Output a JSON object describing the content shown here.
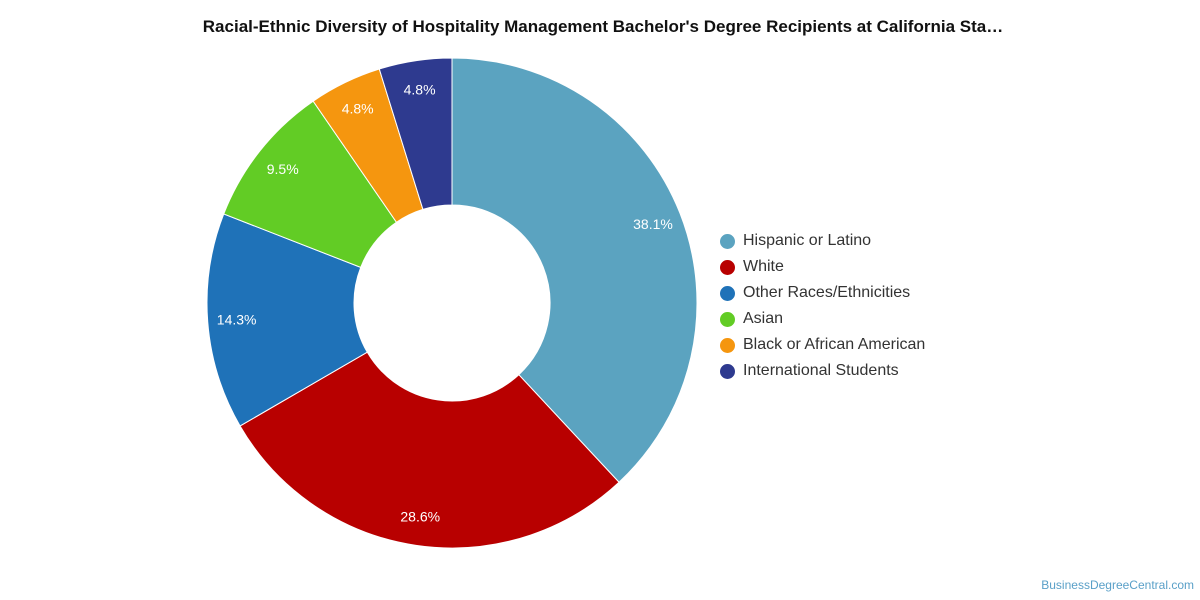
{
  "chart_data": {
    "type": "pie",
    "donut": true,
    "title": "Racial-Ethnic Diversity of Hospitality Management Bachelor's Degree Recipients at California Sta…",
    "legend_position": "right",
    "categories": [
      "Hispanic or Latino",
      "White",
      "Other Races/Ethnicities",
      "Asian",
      "Black or African American",
      "International Students"
    ],
    "values": [
      38.1,
      28.6,
      14.3,
      9.5,
      4.8,
      4.8
    ],
    "labels": [
      "38.1%",
      "28.6%",
      "14.3%",
      "9.5%",
      "4.8%",
      "4.8%"
    ],
    "colors": [
      "#5ba3c0",
      "#b80000",
      "#1f72b8",
      "#62cc25",
      "#f5960f",
      "#2e3a8f"
    ]
  },
  "footer": {
    "credit": "BusinessDegreeCentral.com"
  }
}
